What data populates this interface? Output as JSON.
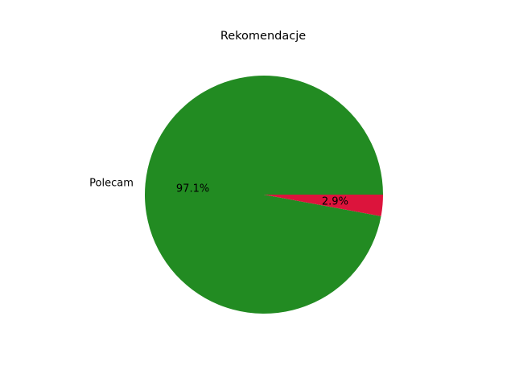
{
  "chart_data": {
    "type": "pie",
    "title": "Rekomendacje",
    "slices": [
      {
        "label": "Polecam",
        "value": 97.1,
        "pct_label": "97.1%",
        "color": "#228b22"
      },
      {
        "label": "",
        "value": 2.9,
        "pct_label": "2.9%",
        "color": "#dc143c"
      }
    ],
    "start_angle_deg": 0,
    "direction": "counterclockwise",
    "legend": "none"
  }
}
